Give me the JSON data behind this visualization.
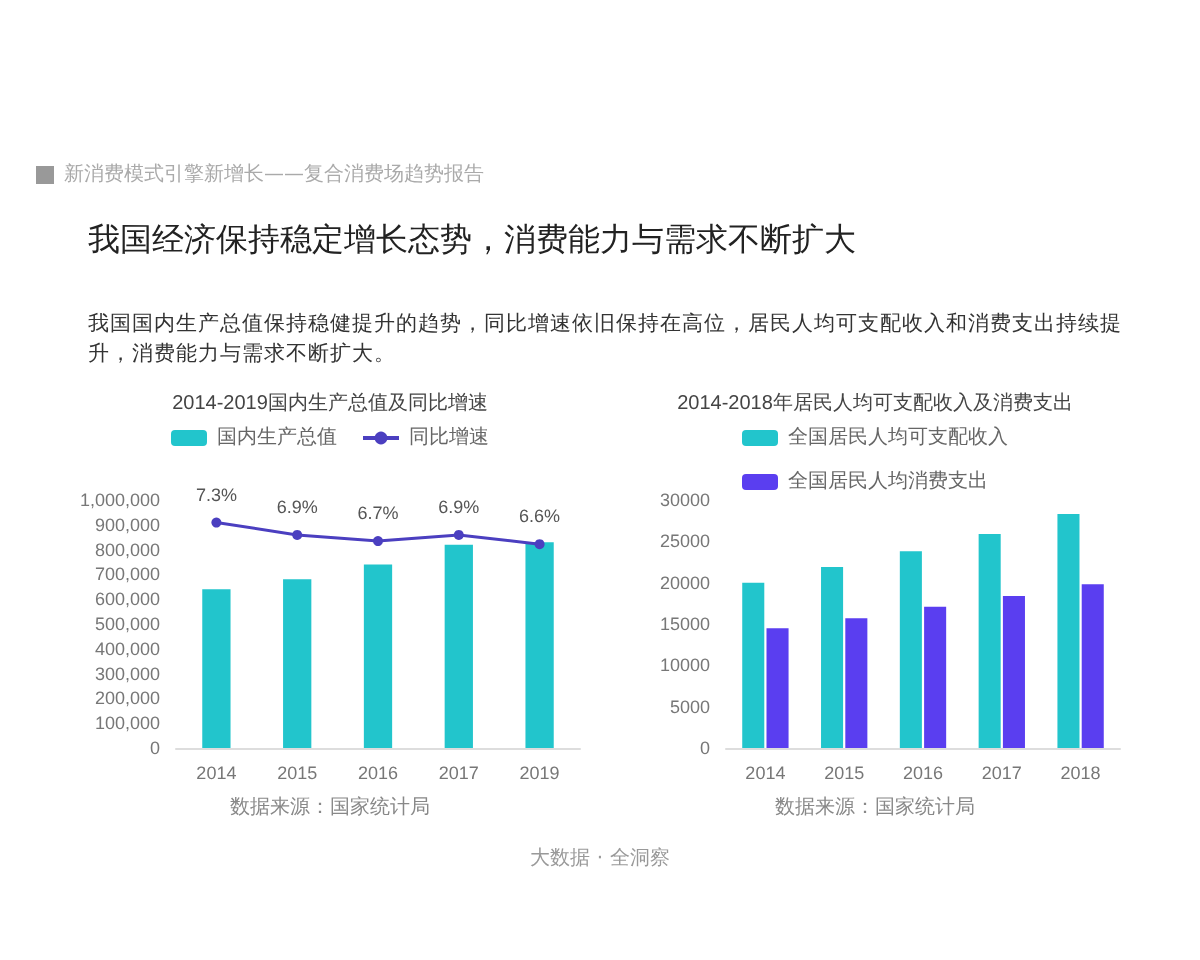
{
  "chart_data": [
    {
      "type": "other",
      "title": "我国经济保持稳定增长态势，消费能力与需求不断扩大",
      "subtitle": "我国国内生产总值保持稳健提升的趋势，同比增速依旧保持在高位，居民人均可支配收入和消费支出持续提升，消费能力与需求不断扩大。",
      "annotations": [
        "新消费模式引擎新增长——复合消费场趋势报告",
        "大数据 · 全洞察"
      ]
    },
    {
      "type": "bar",
      "title": "2014-2019国内生产总值及同比增速",
      "categories": [
        "2014",
        "2015",
        "2016",
        "2017",
        "2019"
      ],
      "series": [
        {
          "name": "国内生产总值",
          "color": "#22c5cc",
          "values": [
            640000,
            680000,
            740000,
            820000,
            830000
          ]
        },
        {
          "type": "line",
          "name": "同比增速",
          "color": "#4b3fc0",
          "axis": "y2",
          "values": [
            7.3,
            6.9,
            6.7,
            6.9,
            6.6
          ],
          "value_labels": [
            "7.3%",
            "6.9%",
            "6.7%",
            "6.9%",
            "6.6%"
          ]
        }
      ],
      "ylim": [
        0,
        1000000
      ],
      "yticks": [
        {
          "value": 0,
          "label": "0"
        },
        {
          "value": 100000,
          "label": "100,000"
        },
        {
          "value": 200000,
          "label": "200,000"
        },
        {
          "value": 300000,
          "label": "300,000"
        },
        {
          "value": 400000,
          "label": "400,000"
        },
        {
          "value": 500000,
          "label": "500,000"
        },
        {
          "value": 600000,
          "label": "600,000"
        },
        {
          "value": 700000,
          "label": "700,000"
        },
        {
          "value": 800000,
          "label": "800,000"
        },
        {
          "value": 900000,
          "label": "900,000"
        },
        {
          "value": 1000000,
          "label": "1,000,000"
        }
      ],
      "marker": "circle",
      "legend": "top",
      "annotations": [
        "数据来源：国家统计局"
      ]
    },
    {
      "type": "bar",
      "title": "2014-2018年居民人均可支配收入及消费支出",
      "categories": [
        "2014",
        "2015",
        "2016",
        "2017",
        "2018"
      ],
      "series": [
        {
          "name": "全国居民人均可支配收入",
          "color": "#22c5cc",
          "values": [
            20000,
            21900,
            23800,
            25900,
            28300
          ]
        },
        {
          "name": "全国居民人均消费支出",
          "color": "#5a3ef0",
          "values": [
            14500,
            15700,
            17100,
            18400,
            19800
          ]
        }
      ],
      "ylim": [
        0,
        30000
      ],
      "yticks": [
        0,
        5000,
        10000,
        15000,
        20000,
        25000,
        30000
      ],
      "legend": "top",
      "annotations": [
        "数据来源：国家统计局"
      ]
    }
  ]
}
